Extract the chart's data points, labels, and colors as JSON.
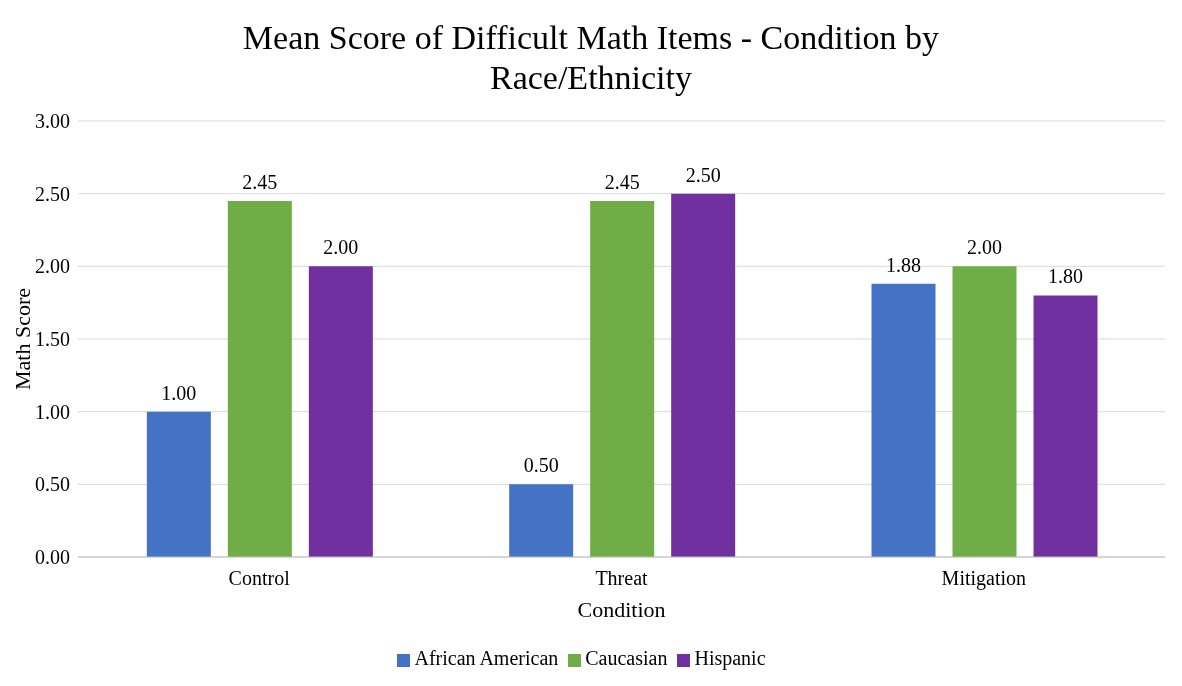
{
  "chart_data": {
    "type": "bar",
    "title": "Mean Score of Difficult Math Items - Condition by Race/Ethnicity",
    "xlabel": "Condition",
    "ylabel": "Math Score",
    "categories": [
      "Control",
      "Threat",
      "Mitigation"
    ],
    "series": [
      {
        "name": "African American",
        "color": "#4472c4",
        "values": [
          1.0,
          0.5,
          1.88
        ],
        "value_labels": [
          "1.00",
          "0.50",
          "1.88"
        ]
      },
      {
        "name": "Caucasian",
        "color": "#70ad47",
        "values": [
          2.45,
          2.45,
          2.0
        ],
        "value_labels": [
          "2.45",
          "2.45",
          "2.00"
        ]
      },
      {
        "name": "Hispanic",
        "color": "#7030a0",
        "values": [
          2.0,
          2.5,
          1.8
        ],
        "value_labels": [
          "2.00",
          "2.50",
          "1.80"
        ]
      }
    ],
    "ylim": [
      0,
      3
    ],
    "yticks": [
      {
        "value": 0,
        "label": "0.00"
      },
      {
        "value": 0.5,
        "label": "0.50"
      },
      {
        "value": 1,
        "label": "1.00"
      },
      {
        "value": 1.5,
        "label": "1.50"
      },
      {
        "value": 2,
        "label": "2.00"
      },
      {
        "value": 2.5,
        "label": "2.50"
      },
      {
        "value": 3,
        "label": "3.00"
      }
    ],
    "grid": "y",
    "legend": "bottom"
  }
}
